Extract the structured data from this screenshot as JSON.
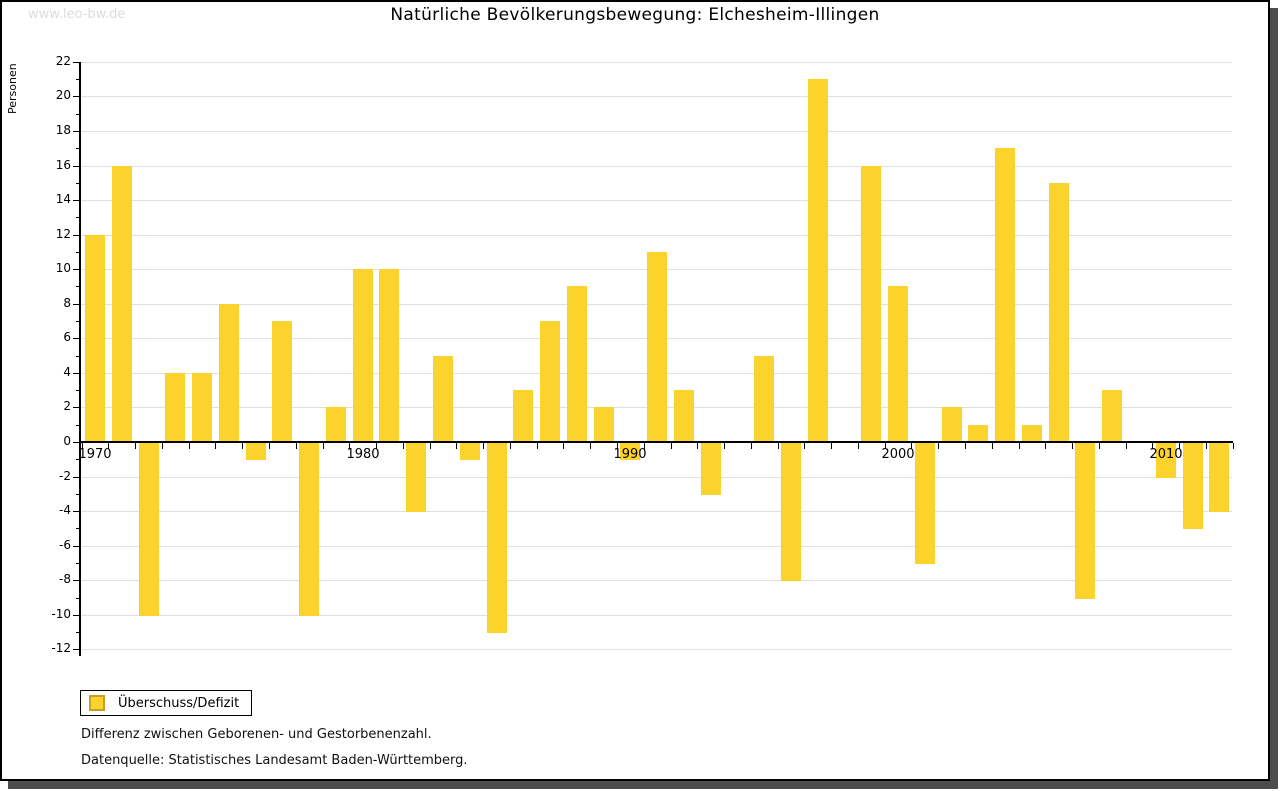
{
  "watermark": "www.leo-bw.de",
  "chart_data": {
    "type": "bar",
    "title": "Natürliche Bevölkerungsbewegung: Elchesheim-Illingen",
    "ylabel": "Personen",
    "ylim": [
      -12,
      22
    ],
    "ytick_step": 2,
    "ytick_labels": [
      22,
      20,
      18,
      16,
      14,
      12,
      10,
      8,
      6,
      4,
      2,
      0,
      -2,
      -4,
      -6,
      -8,
      -10,
      -12
    ],
    "xtick_labels": [
      "1970",
      "1980",
      "1990",
      "2000",
      "2010"
    ],
    "grid": true,
    "legend_position": "bottom-left",
    "categories": [
      1970,
      1971,
      1972,
      1973,
      1974,
      1975,
      1976,
      1977,
      1978,
      1979,
      1980,
      1981,
      1982,
      1983,
      1984,
      1985,
      1986,
      1987,
      1988,
      1989,
      1990,
      1991,
      1992,
      1993,
      1994,
      1995,
      1996,
      1997,
      1998,
      1999,
      2000,
      2001,
      2002,
      2003,
      2004,
      2005,
      2006,
      2007,
      2008,
      2009,
      2010,
      2011,
      2012
    ],
    "series": [
      {
        "name": "Überschuss/Defizit",
        "values": [
          12,
          16,
          -10,
          4,
          4,
          8,
          -1,
          7,
          -10,
          2,
          10,
          10,
          -4,
          5,
          -1,
          -11,
          3,
          7,
          9,
          2,
          -1,
          11,
          3,
          -3,
          0,
          5,
          -8,
          21,
          0,
          16,
          9,
          -7,
          2,
          1,
          17,
          1,
          15,
          -9,
          3,
          0,
          -2,
          -5,
          -4
        ]
      }
    ],
    "colors": {
      "bar": "#fcd32c",
      "grid": "#e0e0e0",
      "axis": "#000000",
      "legend_swatch_border": "#c7a023"
    }
  },
  "legend": {
    "label": "Überschuss/Defizit"
  },
  "footnotes": {
    "line1": "Differenz zwischen Geborenen- und Gestorbenenzahl.",
    "line2": "Datenquelle: Statistisches Landesamt Baden-Württemberg."
  }
}
